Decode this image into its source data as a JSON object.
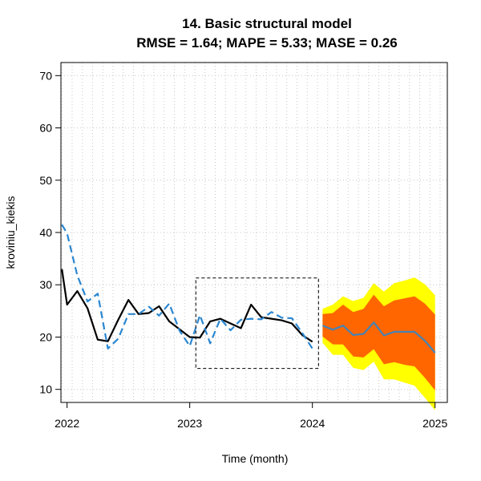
{
  "chart_data": {
    "type": "line",
    "title": "14. Basic structural model",
    "subtitle": "RMSE =  1.64; MAPE =  5.33; MASE =  0.26",
    "xlabel": "Time (month)",
    "ylabel": "kroviniu_kiekis",
    "xlim": [
      2021.95,
      2025.1
    ],
    "ylim": [
      7.5,
      72.5
    ],
    "x_ticks": [
      {
        "value": 2022,
        "label": "2022"
      },
      {
        "value": 2023,
        "label": "2023"
      },
      {
        "value": 2024,
        "label": "2024"
      },
      {
        "value": 2025,
        "label": "2025"
      }
    ],
    "y_ticks": [
      {
        "value": 10,
        "label": "10"
      },
      {
        "value": 20,
        "label": "20"
      },
      {
        "value": 30,
        "label": "30"
      },
      {
        "value": 40,
        "label": "40"
      },
      {
        "value": 50,
        "label": "50"
      },
      {
        "value": 60,
        "label": "60"
      },
      {
        "value": 70,
        "label": "70"
      }
    ],
    "grid": true,
    "colors": {
      "actual": "#000000",
      "fitted": "#2b87d1",
      "forecast": "#4682b4",
      "band_inner": "#ff6600",
      "band_outer": "#ffff00",
      "grid": "#c8c8c8",
      "box": "#000000"
    },
    "series": [
      {
        "style": "solid-black",
        "x": [
          2021.958,
          2022.0,
          2022.083,
          2022.167,
          2022.25,
          2022.333,
          2022.417,
          2022.5,
          2022.583,
          2022.667,
          2022.75,
          2022.833,
          2022.917,
          2023.0,
          2023.083,
          2023.167,
          2023.25,
          2023.333,
          2023.417,
          2023.5,
          2023.583,
          2023.667,
          2023.75,
          2023.833,
          2023.917,
          2024.0
        ],
        "values": [
          33.0,
          26.2,
          28.8,
          25.5,
          19.5,
          19.2,
          23.3,
          27.1,
          24.4,
          24.6,
          25.9,
          23.0,
          21.5,
          20.0,
          19.9,
          23.0,
          23.5,
          22.6,
          21.7,
          26.2,
          23.8,
          23.5,
          23.2,
          22.6,
          20.4,
          19.1
        ]
      },
      {
        "style": "dashed-blue",
        "x": [
          2021.958,
          2022.0,
          2022.083,
          2022.167,
          2022.25,
          2022.333,
          2022.417,
          2022.5,
          2022.583,
          2022.667,
          2022.75,
          2022.833,
          2022.917,
          2023.0,
          2023.083,
          2023.167,
          2023.25,
          2023.333,
          2023.417,
          2023.5,
          2023.583,
          2023.667,
          2023.75,
          2023.833,
          2023.917,
          2024.0
        ],
        "values": [
          41.5,
          39.8,
          31.8,
          26.8,
          28.3,
          17.8,
          19.7,
          24.4,
          24.4,
          25.8,
          24.1,
          26.4,
          21.2,
          18.3,
          24.2,
          18.8,
          23.5,
          21.3,
          23.3,
          23.5,
          23.4,
          24.8,
          23.7,
          23.6,
          20.8,
          17.8
        ]
      },
      {
        "style": "forecast-blue",
        "x": [
          2024.083,
          2024.167,
          2024.25,
          2024.333,
          2024.417,
          2024.5,
          2024.583,
          2024.667,
          2024.75,
          2024.833,
          2024.917,
          2025.0
        ],
        "values": [
          22.2,
          21.4,
          22.2,
          20.4,
          20.6,
          22.8,
          20.3,
          21.0,
          21.0,
          21.0,
          19.3,
          17.0
        ]
      }
    ],
    "bands": [
      {
        "level": "outer",
        "upper": [
          25.4,
          26.2,
          27.8,
          26.9,
          27.5,
          30.3,
          28.7,
          30.3,
          30.8,
          31.4,
          30.1,
          28.0
        ],
        "lower": [
          18.9,
          16.6,
          16.6,
          14.1,
          13.7,
          15.3,
          11.9,
          11.9,
          11.3,
          10.7,
          8.4,
          6.0
        ]
      },
      {
        "level": "inner",
        "upper": [
          24.4,
          24.6,
          26.2,
          24.8,
          25.4,
          28.1,
          25.9,
          27.0,
          27.4,
          27.8,
          26.4,
          24.3
        ],
        "lower": [
          20.1,
          18.6,
          18.6,
          16.3,
          16.1,
          17.7,
          14.8,
          15.2,
          14.7,
          14.4,
          12.2,
          9.8
        ]
      }
    ],
    "highlight_box": {
      "x": [
        2023.05,
        2024.05
      ],
      "y": [
        14.0,
        31.3
      ]
    }
  }
}
